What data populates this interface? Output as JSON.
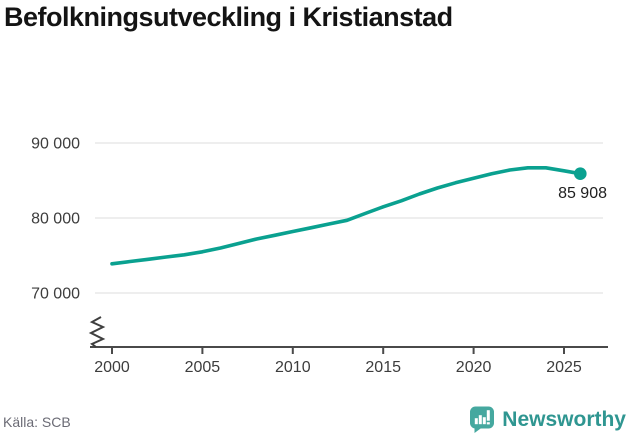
{
  "title": "Befolkningsutveckling i Kristianstad",
  "source": {
    "text": "Källa: SCB"
  },
  "branding": {
    "name": "Newsworthy",
    "icon": "bar-chart-speech-bubble",
    "icon_color": "#45a89f",
    "text_color": "#2f9691"
  },
  "chart_data": {
    "type": "line",
    "title": "Befolkningsutveckling i Kristianstad",
    "x": [
      2000,
      2001,
      2002,
      2003,
      2004,
      2005,
      2006,
      2007,
      2008,
      2009,
      2010,
      2011,
      2012,
      2013,
      2014,
      2015,
      2016,
      2017,
      2018,
      2019,
      2020,
      2021,
      2022,
      2023,
      2024,
      2025,
      2025.9
    ],
    "values": [
      73900,
      74200,
      74500,
      74800,
      75100,
      75500,
      76000,
      76600,
      77200,
      77700,
      78200,
      78700,
      79200,
      79700,
      80600,
      81500,
      82300,
      83200,
      84000,
      84700,
      85300,
      85900,
      86400,
      86700,
      86700,
      86300,
      85908
    ],
    "latest_value": 85908,
    "end_label": "85 908",
    "yticks": [
      {
        "value": 90000,
        "label": "90 000"
      },
      {
        "value": 80000,
        "label": "80 000"
      },
      {
        "value": 70000,
        "label": "70 000"
      }
    ],
    "xticks": [
      {
        "value": 2000,
        "label": "2000"
      },
      {
        "value": 2005,
        "label": "2005"
      },
      {
        "value": 2010,
        "label": "2010"
      },
      {
        "value": 2015,
        "label": "2015"
      },
      {
        "value": 2020,
        "label": "2020"
      },
      {
        "value": 2025,
        "label": "2025"
      }
    ],
    "ylim_displayed": [
      70000,
      90000
    ],
    "xlabel": "",
    "ylabel": "",
    "grid": "horizontal",
    "axis_break": true,
    "legend": "none",
    "line_color": "#0aa190",
    "marker": "end-dot"
  }
}
